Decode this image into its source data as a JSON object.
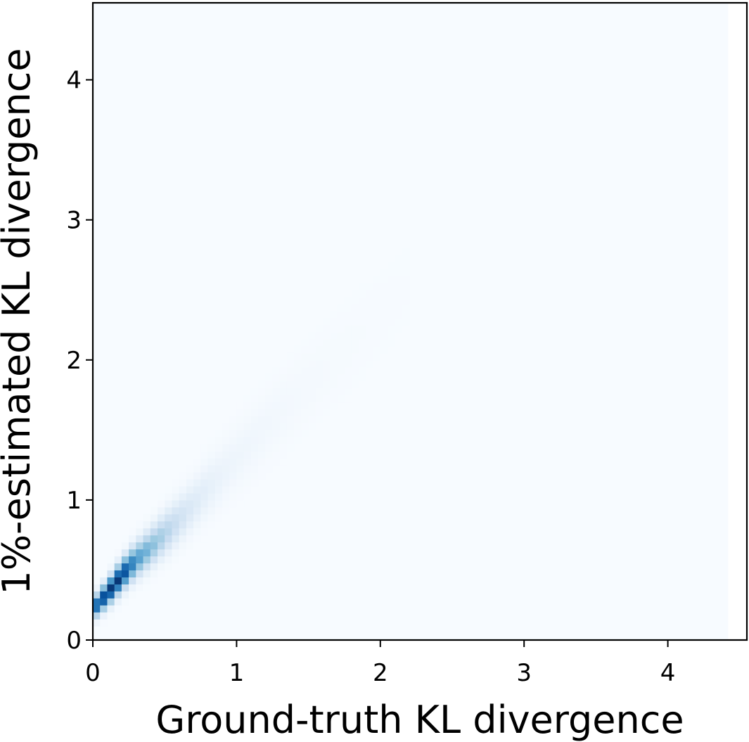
{
  "chart_data": {
    "type": "heatmap",
    "xlabel": "Ground-truth KL divergence",
    "ylabel": "1%-estimated KL divergence",
    "xlim": [
      0,
      4.55
    ],
    "ylim": [
      0,
      4.55
    ],
    "x_ticks": [
      "0",
      "1",
      "2",
      "3",
      "4"
    ],
    "y_ticks": [
      "0",
      "1",
      "2",
      "3",
      "4"
    ],
    "bin_size": 0.05,
    "data_extent_x": [
      0,
      4.42
    ],
    "data_extent_y": [
      0,
      4.55
    ],
    "colormap": "Blues",
    "colormap_stops": [
      "#f7fbff",
      "#deebf7",
      "#c6dbef",
      "#9ecae1",
      "#6baed6",
      "#4292c6",
      "#2171b5",
      "#08519c",
      "#08306b"
    ],
    "density_ridge": [
      {
        "x": 0.0,
        "y": 0.22,
        "density": 0.75
      },
      {
        "x": 0.05,
        "y": 0.28,
        "density": 0.9
      },
      {
        "x": 0.1,
        "y": 0.33,
        "density": 0.95
      },
      {
        "x": 0.15,
        "y": 0.4,
        "density": 1.0
      },
      {
        "x": 0.2,
        "y": 0.46,
        "density": 0.95
      },
      {
        "x": 0.25,
        "y": 0.52,
        "density": 0.8
      },
      {
        "x": 0.3,
        "y": 0.57,
        "density": 0.6
      },
      {
        "x": 0.4,
        "y": 0.66,
        "density": 0.45
      },
      {
        "x": 0.5,
        "y": 0.76,
        "density": 0.32
      },
      {
        "x": 0.6,
        "y": 0.86,
        "density": 0.2
      },
      {
        "x": 0.7,
        "y": 0.97,
        "density": 0.13
      },
      {
        "x": 0.8,
        "y": 1.08,
        "density": 0.09
      },
      {
        "x": 0.9,
        "y": 1.19,
        "density": 0.06
      },
      {
        "x": 1.0,
        "y": 1.3,
        "density": 0.045
      },
      {
        "x": 1.2,
        "y": 1.52,
        "density": 0.03
      },
      {
        "x": 1.4,
        "y": 1.72,
        "density": 0.02
      },
      {
        "x": 1.6,
        "y": 1.92,
        "density": 0.013
      },
      {
        "x": 1.8,
        "y": 2.12,
        "density": 0.009
      },
      {
        "x": 2.0,
        "y": 2.33,
        "density": 0.006
      },
      {
        "x": 2.2,
        "y": 2.55,
        "density": 0.004
      }
    ]
  }
}
